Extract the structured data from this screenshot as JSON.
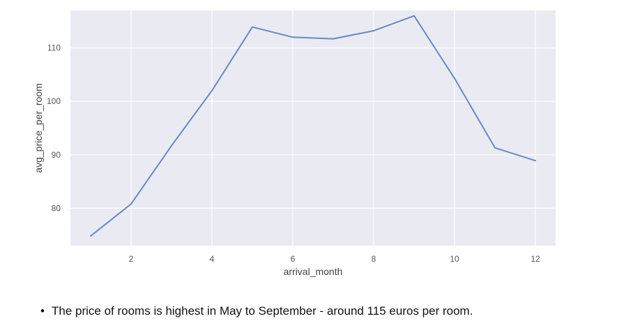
{
  "chart_data": {
    "type": "line",
    "xlabel": "arrival_month",
    "ylabel": "avg_price_per_room",
    "xlim": [
      0.5,
      12.5
    ],
    "ylim": [
      73,
      117
    ],
    "xticks": [
      2,
      4,
      6,
      8,
      10,
      12
    ],
    "yticks": [
      80,
      90,
      100,
      110
    ],
    "grid": true,
    "series": [
      {
        "x": [
          1,
          2,
          3,
          4,
          5,
          6,
          7,
          8,
          9,
          10,
          11,
          12
        ],
        "values": [
          74.8,
          80.8,
          91.7,
          102.0,
          113.9,
          112.0,
          111.7,
          113.2,
          116.0,
          104.3,
          91.3,
          88.9
        ],
        "color": "#6a88c6"
      }
    ],
    "colors": {
      "plot_bg": "#eaeaf2",
      "grid": "#ffffff"
    }
  },
  "notes": [
    {
      "bullet": "•",
      "text": "The price of rooms is highest in May to September - around 115 euros per room."
    }
  ]
}
